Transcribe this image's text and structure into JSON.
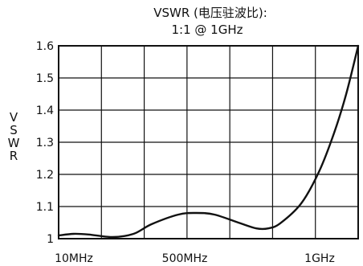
{
  "chart_data": {
    "type": "line",
    "title": "VSWR (电压驻波比):",
    "subtitle": "1:1 @ 1GHz",
    "ylabel": "VSWR",
    "xlabel": "",
    "x_tick_labels": [
      "10MHz",
      "500MHz",
      "1GHz"
    ],
    "y_ticks": [
      1,
      1.1,
      1.2,
      1.3,
      1.4,
      1.5,
      1.6
    ],
    "y_tick_labels": [
      "1",
      "1.1",
      "1.2",
      "1.3",
      "1.4",
      "1.5",
      "1.6"
    ],
    "ylim": [
      1,
      1.6
    ],
    "grid": true,
    "line_color": "#111111",
    "series": [
      {
        "name": "",
        "points": [
          [
            0.0,
            1.01
          ],
          [
            0.05,
            1.015
          ],
          [
            0.1,
            1.013
          ],
          [
            0.18,
            1.005
          ],
          [
            0.25,
            1.015
          ],
          [
            0.31,
            1.045
          ],
          [
            0.4,
            1.075
          ],
          [
            0.46,
            1.08
          ],
          [
            0.52,
            1.075
          ],
          [
            0.6,
            1.05
          ],
          [
            0.66,
            1.032
          ],
          [
            0.7,
            1.032
          ],
          [
            0.74,
            1.048
          ],
          [
            0.81,
            1.11
          ],
          [
            0.87,
            1.21
          ],
          [
            0.92,
            1.33
          ],
          [
            0.96,
            1.45
          ],
          [
            1.0,
            1.6
          ]
        ]
      }
    ]
  }
}
